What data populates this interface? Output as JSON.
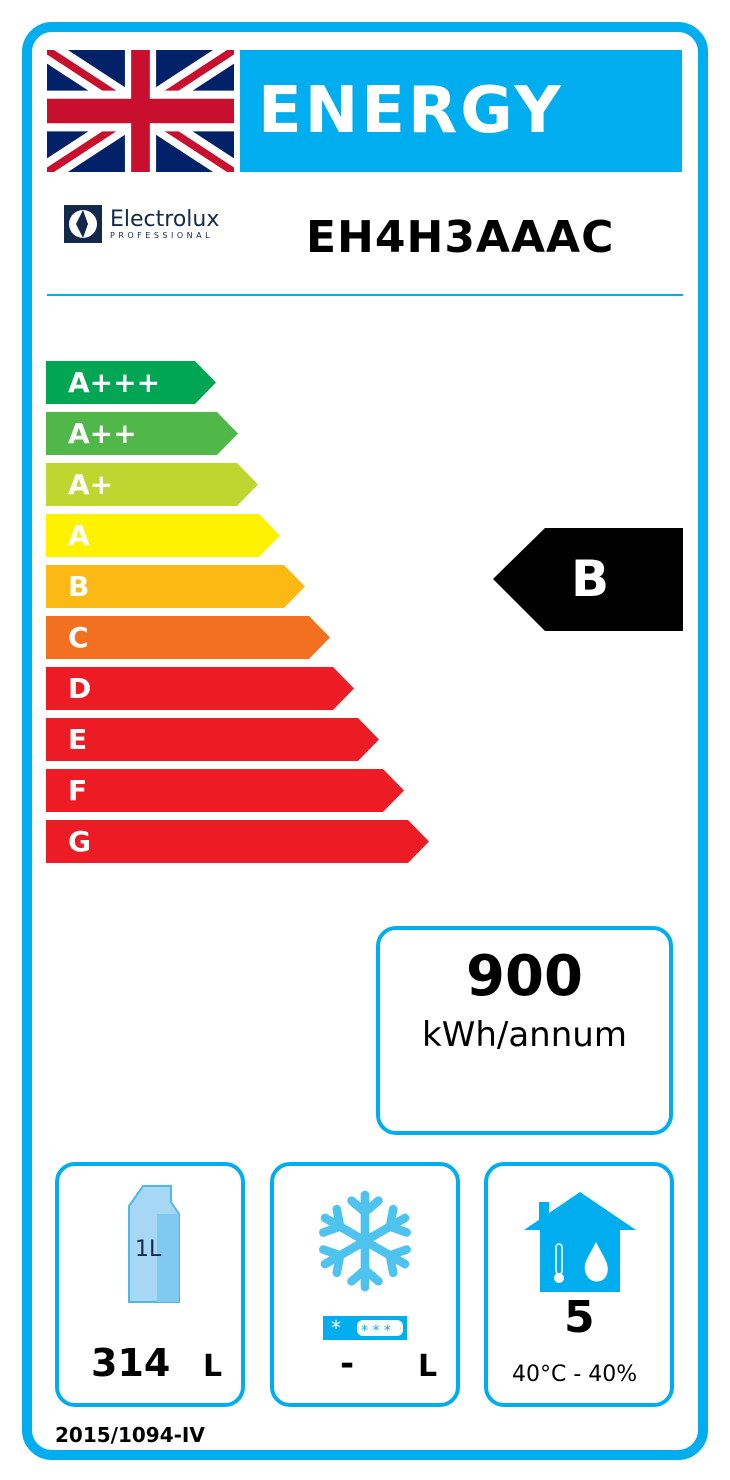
{
  "header": {
    "title": "ENERGY",
    "flag": "union-jack-icon"
  },
  "brand": {
    "name": "Electrolux",
    "sub": "PROFESSIONAL"
  },
  "model": "EH4H3AAAC",
  "scale": [
    {
      "label": "A+++",
      "color": "#00a651"
    },
    {
      "label": "A++",
      "color": "#50b848"
    },
    {
      "label": "A+",
      "color": "#bed630"
    },
    {
      "label": "A",
      "color": "#fff200"
    },
    {
      "label": "B",
      "color": "#fdb913"
    },
    {
      "label": "C",
      "color": "#f37021"
    },
    {
      "label": "D",
      "color": "#ed1c24"
    },
    {
      "label": "E",
      "color": "#ed1c24"
    },
    {
      "label": "F",
      "color": "#ed1c24"
    },
    {
      "label": "G",
      "color": "#ed1c24"
    }
  ],
  "rating": "B",
  "consumption": {
    "value": "900",
    "unit": "kWh/annum"
  },
  "fresh_volume": {
    "value": "314",
    "unit": "L",
    "icon": "milk-carton-icon",
    "icon_text": "1L"
  },
  "frozen_volume": {
    "value": "-",
    "unit": "L",
    "icon": "snowflake-icon"
  },
  "climate": {
    "class": "5",
    "conditions": "40°C - 40%",
    "icon": "house-climate-icon"
  },
  "regulation": "2015/1094-IV",
  "accent": "#00aeef"
}
